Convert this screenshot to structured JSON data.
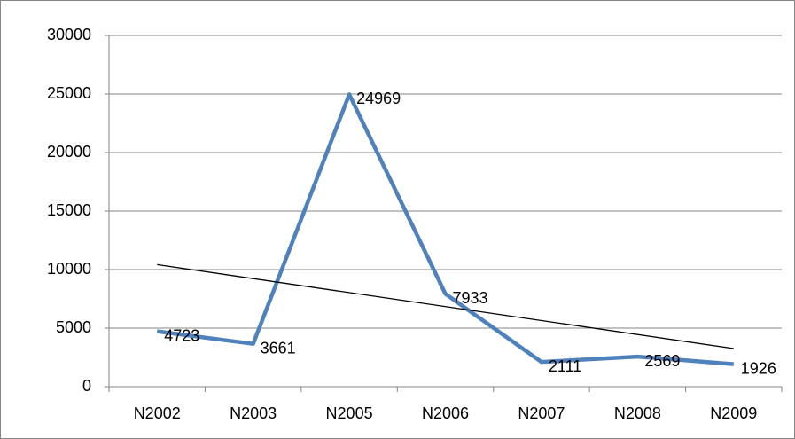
{
  "chart_data": {
    "type": "line",
    "categories": [
      "N2002",
      "N2003",
      "N2005",
      "N2006",
      "N2007",
      "N2008",
      "N2009"
    ],
    "values": [
      4723,
      3661,
      24969,
      7933,
      2111,
      2569,
      1926
    ],
    "color": "#4f81bd",
    "trendline": true,
    "trendline_color": "#000000",
    "ylim": [
      0,
      30000
    ],
    "yticks": [
      0,
      5000,
      10000,
      15000,
      20000,
      25000,
      30000
    ],
    "grid": true
  }
}
